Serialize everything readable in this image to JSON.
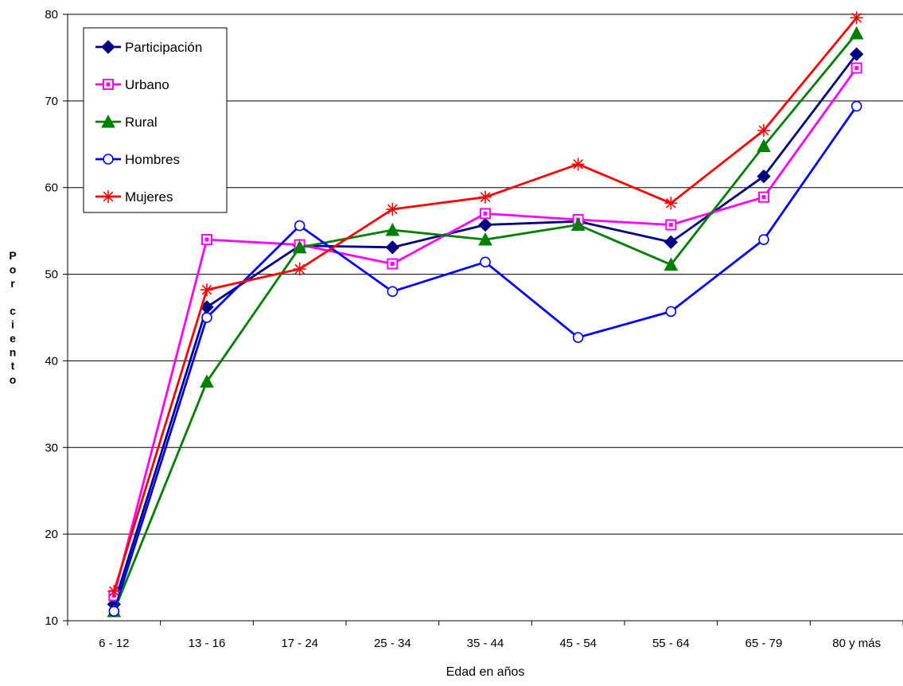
{
  "chart_data": {
    "type": "line",
    "title": "",
    "xlabel": "Edad en años",
    "ylabel": "Por ciento",
    "ylim": [
      10,
      80
    ],
    "yticks": [
      10,
      20,
      30,
      40,
      50,
      60,
      70,
      80
    ],
    "grid": true,
    "legend_position": "top-left",
    "categories": [
      "6 - 12",
      "13 - 16",
      "17 - 24",
      "25 - 34",
      "35 - 44",
      "45 - 54",
      "55 - 64",
      "65 - 79",
      "80 y más"
    ],
    "series": [
      {
        "name": "Participación",
        "color": "#000080",
        "marker": "diamond",
        "values": [
          11.9,
          46.2,
          53.3,
          53.1,
          55.7,
          56.1,
          53.7,
          61.3,
          75.4
        ]
      },
      {
        "name": "Urbano",
        "color": "#ff00ff",
        "marker": "square",
        "values": [
          12.9,
          54.0,
          53.4,
          51.2,
          57.0,
          56.3,
          55.7,
          58.9,
          73.8
        ]
      },
      {
        "name": "Rural",
        "color": "#008000",
        "marker": "triangle",
        "values": [
          11.1,
          37.6,
          53.1,
          55.1,
          54.0,
          55.7,
          51.1,
          64.8,
          77.8
        ]
      },
      {
        "name": "Hombres",
        "color": "#0000ff",
        "marker": "circle",
        "values": [
          11.1,
          45.0,
          55.6,
          48.0,
          51.4,
          42.7,
          45.7,
          54.0,
          69.4
        ]
      },
      {
        "name": "Mujeres",
        "color": "#ff0000",
        "marker": "star",
        "values": [
          13.4,
          48.2,
          50.6,
          57.5,
          58.9,
          62.7,
          58.2,
          66.6,
          79.6
        ]
      }
    ]
  }
}
